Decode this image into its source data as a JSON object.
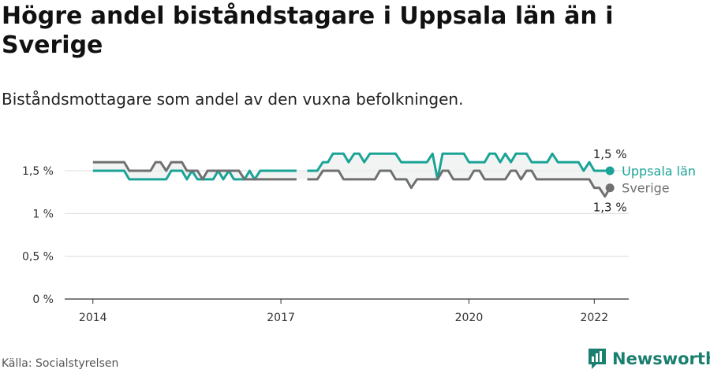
{
  "chart_data": {
    "type": "line",
    "title": "Högre andel biståndstagare i Uppsala län än i Sverige",
    "subtitle": "Biståndsmottagare som andel av den vuxna befolkningen.",
    "source": "Källa: Socialstyrelsen",
    "brand": "Newsworthy",
    "ylim": [
      0,
      1.5
    ],
    "y_ticks": [
      {
        "value": 0,
        "label": "0 %"
      },
      {
        "value": 0.5,
        "label": "0,5 %"
      },
      {
        "value": 1,
        "label": "1 %"
      },
      {
        "value": 1.5,
        "label": "1,5 %"
      }
    ],
    "x_ticks": [
      {
        "value": 2014.0,
        "label": "2014"
      },
      {
        "value": 2017.0,
        "label": "2017"
      },
      {
        "value": 2020.0,
        "label": "2020"
      },
      {
        "value": 2022.0,
        "label": "2022"
      }
    ],
    "xlim": [
      2013.55,
      2022.55
    ],
    "series": [
      {
        "name": "Uppsala län",
        "color": "#1aa396",
        "end_label": "1,5 %",
        "points": [
          [
            2014.0,
            1.5
          ],
          [
            2014.5,
            1.5
          ],
          [
            2014.58,
            1.4
          ],
          [
            2014.67,
            1.4
          ],
          [
            2014.75,
            1.4
          ],
          [
            2014.83,
            1.4
          ],
          [
            2014.92,
            1.4
          ],
          [
            2015.0,
            1.4
          ],
          [
            2015.08,
            1.4
          ],
          [
            2015.17,
            1.4
          ],
          [
            2015.25,
            1.5
          ],
          [
            2015.33,
            1.5
          ],
          [
            2015.42,
            1.5
          ],
          [
            2015.5,
            1.4
          ],
          [
            2015.58,
            1.5
          ],
          [
            2015.67,
            1.4
          ],
          [
            2015.75,
            1.4
          ],
          [
            2015.83,
            1.4
          ],
          [
            2015.92,
            1.4
          ],
          [
            2016.0,
            1.5
          ],
          [
            2016.08,
            1.4
          ],
          [
            2016.17,
            1.5
          ],
          [
            2016.25,
            1.4
          ],
          [
            2016.33,
            1.4
          ],
          [
            2016.42,
            1.4
          ],
          [
            2016.5,
            1.5
          ],
          [
            2016.58,
            1.4
          ],
          [
            2016.67,
            1.5
          ],
          [
            2016.75,
            1.5
          ],
          [
            2016.83,
            1.5
          ],
          [
            2016.92,
            1.5
          ],
          [
            2017.0,
            1.5
          ],
          [
            2017.08,
            1.5
          ],
          [
            2017.17,
            1.5
          ],
          [
            2017.25,
            1.5
          ],
          [
            null,
            null
          ],
          [
            2017.42,
            1.5
          ],
          [
            2017.5,
            1.5
          ],
          [
            2017.58,
            1.5
          ],
          [
            2017.67,
            1.6
          ],
          [
            2017.75,
            1.6
          ],
          [
            2017.83,
            1.7
          ],
          [
            2017.92,
            1.7
          ],
          [
            2018.0,
            1.7
          ],
          [
            2018.08,
            1.6
          ],
          [
            2018.17,
            1.7
          ],
          [
            2018.25,
            1.7
          ],
          [
            2018.33,
            1.6
          ],
          [
            2018.42,
            1.7
          ],
          [
            2018.5,
            1.7
          ],
          [
            2018.58,
            1.7
          ],
          [
            2018.67,
            1.7
          ],
          [
            2018.75,
            1.7
          ],
          [
            2018.83,
            1.7
          ],
          [
            2018.92,
            1.6
          ],
          [
            2019.0,
            1.6
          ],
          [
            2019.08,
            1.6
          ],
          [
            2019.17,
            1.6
          ],
          [
            2019.25,
            1.6
          ],
          [
            2019.33,
            1.6
          ],
          [
            2019.42,
            1.7
          ],
          [
            2019.5,
            1.4
          ],
          [
            2019.58,
            1.7
          ],
          [
            2019.67,
            1.7
          ],
          [
            2019.75,
            1.7
          ],
          [
            2019.83,
            1.7
          ],
          [
            2019.92,
            1.7
          ],
          [
            2020.0,
            1.6
          ],
          [
            2020.08,
            1.6
          ],
          [
            2020.17,
            1.6
          ],
          [
            2020.25,
            1.6
          ],
          [
            2020.33,
            1.7
          ],
          [
            2020.42,
            1.7
          ],
          [
            2020.5,
            1.6
          ],
          [
            2020.58,
            1.7
          ],
          [
            2020.67,
            1.6
          ],
          [
            2020.75,
            1.7
          ],
          [
            2020.83,
            1.7
          ],
          [
            2020.92,
            1.7
          ],
          [
            2021.0,
            1.6
          ],
          [
            2021.08,
            1.6
          ],
          [
            2021.17,
            1.6
          ],
          [
            2021.25,
            1.6
          ],
          [
            2021.33,
            1.7
          ],
          [
            2021.42,
            1.6
          ],
          [
            2021.5,
            1.6
          ],
          [
            2021.58,
            1.6
          ],
          [
            2021.67,
            1.6
          ],
          [
            2021.75,
            1.6
          ],
          [
            2021.83,
            1.5
          ],
          [
            2021.92,
            1.6
          ],
          [
            2022.0,
            1.5
          ],
          [
            2022.08,
            1.5
          ],
          [
            2022.17,
            1.5
          ],
          [
            2022.25,
            1.5
          ]
        ]
      },
      {
        "name": "Sverige",
        "color": "#707070",
        "end_label": "1,3 %",
        "points": [
          [
            2014.0,
            1.6
          ],
          [
            2014.5,
            1.6
          ],
          [
            2014.58,
            1.5
          ],
          [
            2014.67,
            1.5
          ],
          [
            2014.75,
            1.5
          ],
          [
            2014.83,
            1.5
          ],
          [
            2014.92,
            1.5
          ],
          [
            2015.0,
            1.6
          ],
          [
            2015.08,
            1.6
          ],
          [
            2015.17,
            1.5
          ],
          [
            2015.25,
            1.6
          ],
          [
            2015.33,
            1.6
          ],
          [
            2015.42,
            1.6
          ],
          [
            2015.5,
            1.5
          ],
          [
            2015.58,
            1.5
          ],
          [
            2015.67,
            1.5
          ],
          [
            2015.75,
            1.4
          ],
          [
            2015.83,
            1.5
          ],
          [
            2015.92,
            1.5
          ],
          [
            2016.0,
            1.5
          ],
          [
            2016.08,
            1.5
          ],
          [
            2016.17,
            1.5
          ],
          [
            2016.25,
            1.5
          ],
          [
            2016.33,
            1.5
          ],
          [
            2016.42,
            1.4
          ],
          [
            2016.5,
            1.4
          ],
          [
            2016.58,
            1.4
          ],
          [
            2016.67,
            1.4
          ],
          [
            2016.75,
            1.4
          ],
          [
            2016.83,
            1.4
          ],
          [
            2016.92,
            1.4
          ],
          [
            2017.0,
            1.4
          ],
          [
            2017.08,
            1.4
          ],
          [
            2017.17,
            1.4
          ],
          [
            2017.25,
            1.4
          ],
          [
            null,
            null
          ],
          [
            2017.42,
            1.4
          ],
          [
            2017.5,
            1.4
          ],
          [
            2017.58,
            1.4
          ],
          [
            2017.67,
            1.5
          ],
          [
            2017.75,
            1.5
          ],
          [
            2017.83,
            1.5
          ],
          [
            2017.92,
            1.5
          ],
          [
            2018.0,
            1.4
          ],
          [
            2018.08,
            1.4
          ],
          [
            2018.17,
            1.4
          ],
          [
            2018.25,
            1.4
          ],
          [
            2018.33,
            1.4
          ],
          [
            2018.42,
            1.4
          ],
          [
            2018.5,
            1.4
          ],
          [
            2018.58,
            1.5
          ],
          [
            2018.67,
            1.5
          ],
          [
            2018.75,
            1.5
          ],
          [
            2018.83,
            1.4
          ],
          [
            2018.92,
            1.4
          ],
          [
            2019.0,
            1.4
          ],
          [
            2019.08,
            1.3
          ],
          [
            2019.17,
            1.4
          ],
          [
            2019.25,
            1.4
          ],
          [
            2019.33,
            1.4
          ],
          [
            2019.42,
            1.4
          ],
          [
            2019.5,
            1.4
          ],
          [
            2019.58,
            1.5
          ],
          [
            2019.67,
            1.5
          ],
          [
            2019.75,
            1.4
          ],
          [
            2019.83,
            1.4
          ],
          [
            2019.92,
            1.4
          ],
          [
            2020.0,
            1.4
          ],
          [
            2020.08,
            1.5
          ],
          [
            2020.17,
            1.5
          ],
          [
            2020.25,
            1.4
          ],
          [
            2020.33,
            1.4
          ],
          [
            2020.42,
            1.4
          ],
          [
            2020.5,
            1.4
          ],
          [
            2020.58,
            1.4
          ],
          [
            2020.67,
            1.5
          ],
          [
            2020.75,
            1.5
          ],
          [
            2020.83,
            1.4
          ],
          [
            2020.92,
            1.5
          ],
          [
            2021.0,
            1.5
          ],
          [
            2021.08,
            1.4
          ],
          [
            2021.17,
            1.4
          ],
          [
            2021.25,
            1.4
          ],
          [
            2021.33,
            1.4
          ],
          [
            2021.42,
            1.4
          ],
          [
            2021.5,
            1.4
          ],
          [
            2021.58,
            1.4
          ],
          [
            2021.67,
            1.4
          ],
          [
            2021.75,
            1.4
          ],
          [
            2021.83,
            1.4
          ],
          [
            2021.92,
            1.4
          ],
          [
            2022.0,
            1.3
          ],
          [
            2022.08,
            1.3
          ],
          [
            2022.17,
            1.2
          ],
          [
            2022.25,
            1.3
          ]
        ]
      }
    ]
  },
  "logo_icon": "newsworthy-bar-chart-icon"
}
